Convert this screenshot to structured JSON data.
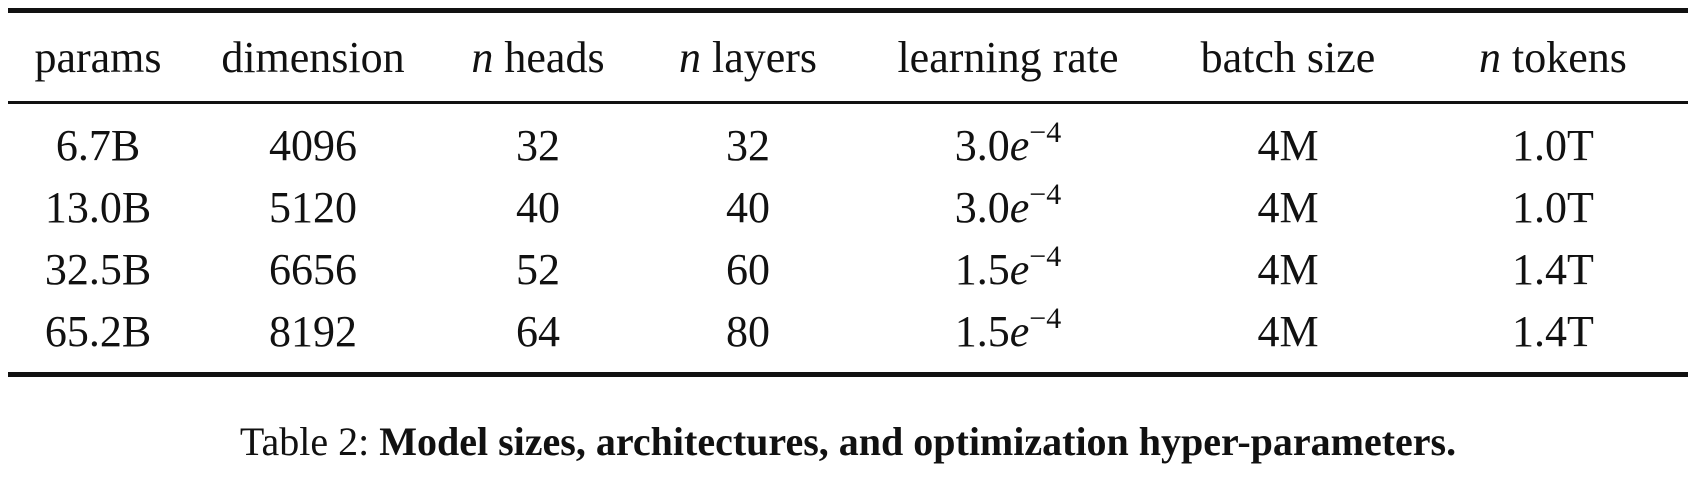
{
  "table": {
    "headers": {
      "params": "params",
      "dimension": "dimension",
      "n_heads_var": "n",
      "n_heads_rest": " heads",
      "n_layers_var": "n",
      "n_layers_rest": " layers",
      "learning_rate": "learning rate",
      "batch_size": "batch size",
      "n_tokens_var": "n",
      "n_tokens_rest": " tokens"
    },
    "rows": [
      {
        "params": "6.7B",
        "dimension": "4096",
        "heads": "32",
        "layers": "32",
        "lr_mantissa": "3.0",
        "lr_e": "e",
        "lr_exp": "−4",
        "batch": "4M",
        "tokens": "1.0T"
      },
      {
        "params": "13.0B",
        "dimension": "5120",
        "heads": "40",
        "layers": "40",
        "lr_mantissa": "3.0",
        "lr_e": "e",
        "lr_exp": "−4",
        "batch": "4M",
        "tokens": "1.0T"
      },
      {
        "params": "32.5B",
        "dimension": "6656",
        "heads": "52",
        "layers": "60",
        "lr_mantissa": "1.5",
        "lr_e": "e",
        "lr_exp": "−4",
        "batch": "4M",
        "tokens": "1.4T"
      },
      {
        "params": "65.2B",
        "dimension": "8192",
        "heads": "64",
        "layers": "80",
        "lr_mantissa": "1.5",
        "lr_e": "e",
        "lr_exp": "−4",
        "batch": "4M",
        "tokens": "1.4T"
      }
    ]
  },
  "caption": {
    "label": "Table 2: ",
    "text": "Model sizes, architectures, and optimization hyper-parameters."
  }
}
